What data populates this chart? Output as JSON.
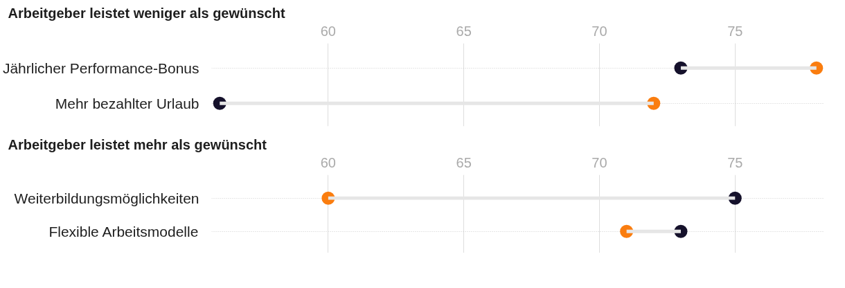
{
  "chart_data": [
    {
      "type": "scatter",
      "title": "Arbeitgeber leistet weniger als gewünscht",
      "orientation": "horizontal",
      "categories": [
        "Jährlicher Performance-Bonus",
        "Mehr bezahlter Urlaub"
      ],
      "xlim": [
        55.7,
        78.3
      ],
      "xticks": [
        60,
        65,
        70,
        75
      ],
      "grid": true,
      "marker": "circle",
      "series": [
        {
          "color": "#15112b",
          "values": [
            73,
            56
          ]
        },
        {
          "color": "#fa7d0f",
          "values": [
            78,
            72
          ]
        },
        {
          "type": "bar",
          "color": "#e6e6e6",
          "base": [
            73,
            56
          ],
          "values": [
            5,
            16
          ]
        }
      ]
    },
    {
      "type": "scatter",
      "title": "Arbeitgeber leistet mehr als gewünscht",
      "orientation": "horizontal",
      "categories": [
        "Weiterbildungsmöglichkeiten",
        "Flexible Arbeitsmodelle"
      ],
      "xlim": [
        55.7,
        78.3
      ],
      "xticks": [
        60,
        65,
        70,
        75
      ],
      "grid": true,
      "marker": "circle",
      "series": [
        {
          "color": "#15112b",
          "values": [
            75,
            73
          ]
        },
        {
          "color": "#fa7d0f",
          "values": [
            60,
            71
          ]
        },
        {
          "type": "bar",
          "color": "#e6e6e6",
          "base": [
            60,
            71
          ],
          "values": [
            15,
            2
          ]
        }
      ]
    }
  ]
}
